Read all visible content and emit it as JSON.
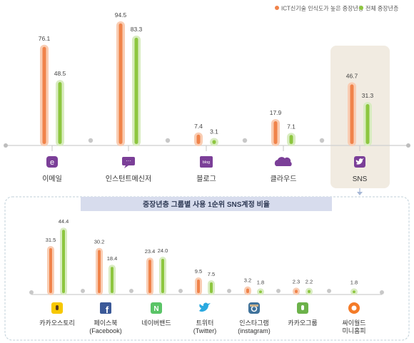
{
  "legend": {
    "items": [
      {
        "label": "ICT신기술 인식도가 높은 중장년층",
        "color": "#f0834a"
      },
      {
        "label": "전체 중장년층",
        "color": "#8dc63f"
      }
    ]
  },
  "colors": {
    "orange": "#f0834a",
    "orange_halo": "#f9cdb3",
    "green": "#8dc63f",
    "green_halo": "#d9ecc1",
    "icon_purple": "#7b3f98",
    "panel_bg": "#f1ebe1",
    "subtitle_bar": "#d7dced",
    "axis": "#cfcfcf",
    "bottom_panel_border": "#bfcfd8"
  },
  "chart_data": [
    {
      "type": "bar",
      "title": "",
      "categories": [
        "이메일",
        "인스턴트메신저",
        "블로그",
        "클라우드",
        "SNS"
      ],
      "icons": [
        "email-icon",
        "messenger-icon",
        "blog-icon",
        "cloud-icon",
        "twitter-bird-icon"
      ],
      "icon_glyphs": [
        "e",
        "···",
        "blog",
        "",
        ""
      ],
      "highlighted_category": "SNS",
      "series": [
        {
          "name": "ICT신기술 인식도가 높은 중장년층",
          "values": [
            76.1,
            94.5,
            7.4,
            17.9,
            46.7
          ]
        },
        {
          "name": "전체 중장년층",
          "values": [
            48.5,
            83.3,
            3.1,
            7.1,
            31.3
          ]
        }
      ],
      "ylim": [
        0,
        100
      ],
      "grid": false,
      "legend_position": "top-right"
    },
    {
      "type": "bar",
      "title": "중장년층 그룹별 사용 1순위 SNS계정 비율",
      "categories": [
        "카카오스토리",
        "페이스북\n(Facebook)",
        "네이버밴드",
        "트위터\n(Twitter)",
        "인스타그램\n(instagram)",
        "카카오그룹",
        "싸이월드\n미니홈피"
      ],
      "icons": [
        "kakaostory-icon",
        "facebook-icon",
        "naver-band-icon",
        "twitter-icon",
        "instagram-icon",
        "kakaogroup-icon",
        "cyworld-icon"
      ],
      "icon_glyphs": [
        "",
        "f",
        "N",
        "",
        "",
        "",
        ""
      ],
      "series": [
        {
          "name": "ICT신기술 인식도가 높은 중장년층",
          "values": [
            31.5,
            30.2,
            23.4,
            9.5,
            3.2,
            2.3,
            null
          ]
        },
        {
          "name": "전체 중장년층",
          "values": [
            44.4,
            18.4,
            24.0,
            7.5,
            1.8,
            2.2,
            1.8
          ]
        }
      ],
      "ylim": [
        0,
        50
      ],
      "grid": false
    }
  ]
}
